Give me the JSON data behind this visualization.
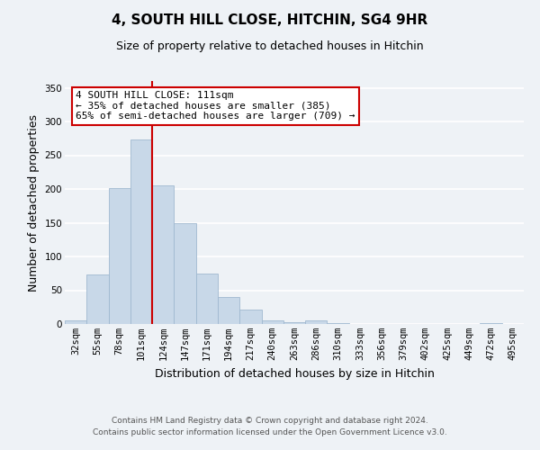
{
  "title": "4, SOUTH HILL CLOSE, HITCHIN, SG4 9HR",
  "subtitle": "Size of property relative to detached houses in Hitchin",
  "xlabel": "Distribution of detached houses by size in Hitchin",
  "ylabel": "Number of detached properties",
  "categories": [
    "32sqm",
    "55sqm",
    "78sqm",
    "101sqm",
    "124sqm",
    "147sqm",
    "171sqm",
    "194sqm",
    "217sqm",
    "240sqm",
    "263sqm",
    "286sqm",
    "310sqm",
    "333sqm",
    "356sqm",
    "379sqm",
    "402sqm",
    "425sqm",
    "449sqm",
    "472sqm",
    "495sqm"
  ],
  "values": [
    6,
    74,
    202,
    274,
    205,
    149,
    75,
    40,
    21,
    6,
    3,
    5,
    2,
    0,
    0,
    0,
    0,
    0,
    0,
    2,
    0
  ],
  "bar_color": "#c8d8e8",
  "bar_edge_color": "#a0b8d0",
  "vline_x_index": 3.5,
  "vline_color": "#cc0000",
  "annotation_text": "4 SOUTH HILL CLOSE: 111sqm\n← 35% of detached houses are smaller (385)\n65% of semi-detached houses are larger (709) →",
  "annotation_box_color": "white",
  "annotation_box_edge_color": "#cc0000",
  "ylim": [
    0,
    360
  ],
  "yticks": [
    0,
    50,
    100,
    150,
    200,
    250,
    300,
    350
  ],
  "footer_line1": "Contains HM Land Registry data © Crown copyright and database right 2024.",
  "footer_line2": "Contains public sector information licensed under the Open Government Licence v3.0.",
  "background_color": "#eef2f6",
  "grid_color": "white",
  "title_fontsize": 11,
  "subtitle_fontsize": 9,
  "axis_label_fontsize": 9,
  "tick_fontsize": 7.5,
  "footer_fontsize": 6.5,
  "annotation_fontsize": 8
}
